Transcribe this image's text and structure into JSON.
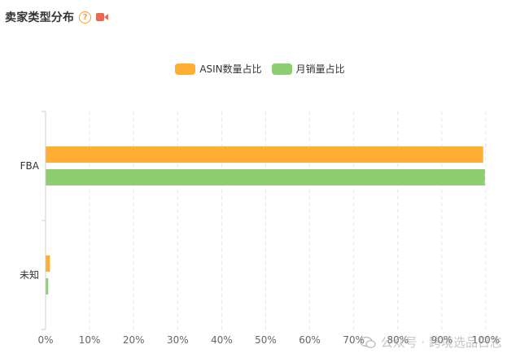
{
  "header": {
    "title": "卖家类型分布",
    "help_icon": "question-circle-icon",
    "video_icon": "video-camera-icon",
    "help_symbol": "?"
  },
  "legend": {
    "items": [
      {
        "label": "ASIN数量占比",
        "color": "#ffae33"
      },
      {
        "label": "月销量占比",
        "color": "#8fcd73"
      }
    ]
  },
  "chart_data": {
    "type": "bar",
    "orientation": "horizontal",
    "title": "卖家类型分布",
    "categories": [
      "FBA",
      "未知"
    ],
    "series": [
      {
        "name": "ASIN数量占比",
        "color": "#ffae33",
        "values": [
          99.3,
          0.9
        ]
      },
      {
        "name": "月销量占比",
        "color": "#8fcd73",
        "values": [
          99.7,
          0.5
        ]
      }
    ],
    "x_ticks": [
      "0%",
      "10%",
      "20%",
      "30%",
      "40%",
      "50%",
      "60%",
      "70%",
      "80%",
      "90%",
      "100%"
    ],
    "xlim": [
      0,
      100
    ],
    "grid": true,
    "legend_position": "top-center"
  },
  "watermark": {
    "text": "公众号 · 跨境选品日志",
    "icon": "wechat-icon"
  }
}
